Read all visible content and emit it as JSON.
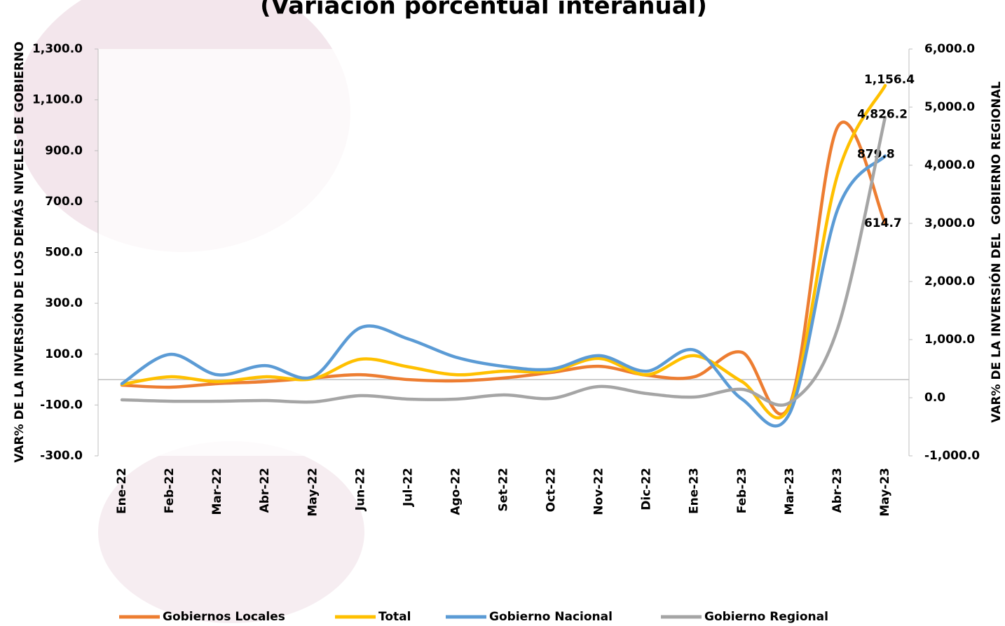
{
  "chart_data": {
    "type": "line",
    "title": "(Variación porcentual interanual)",
    "y_label": "VAR% DE LA INVERSIÓN DE LOS DEMÁS NIVELES DE GOBIERNO",
    "y2_label": "VAR% DE LA INVERSIÓN DEL  GOBIERNO REGIONAL",
    "categories": [
      "Ene-22",
      "Feb-22",
      "Mar-22",
      "Abr-22",
      "May-22",
      "Jun-22",
      "Jul-22",
      "Ago-22",
      "Set-22",
      "Oct-22",
      "Nov-22",
      "Dic-22",
      "Ene-23",
      "Feb-23",
      "Mar-23",
      "Abr-23",
      "May-23"
    ],
    "ylim": [
      -300,
      1300
    ],
    "yticks": [
      {
        "value": -300,
        "label": "-300.0"
      },
      {
        "value": -100,
        "label": "-100.0"
      },
      {
        "value": 100,
        "label": "100.0"
      },
      {
        "value": 300,
        "label": "300.0"
      },
      {
        "value": 500,
        "label": "500.0"
      },
      {
        "value": 700,
        "label": "700.0"
      },
      {
        "value": 900,
        "label": "900.0"
      },
      {
        "value": 1100,
        "label": "1,100.0"
      },
      {
        "value": 1300,
        "label": "1,300.0"
      }
    ],
    "y2lim": [
      -1000,
      6000
    ],
    "y2ticks": [
      {
        "value": -1000,
        "label": "-1,000.0"
      },
      {
        "value": 0,
        "label": "0.0"
      },
      {
        "value": 1000,
        "label": "1,000.0"
      },
      {
        "value": 2000,
        "label": "2,000.0"
      },
      {
        "value": 3000,
        "label": "3,000.0"
      },
      {
        "value": 4000,
        "label": "4,000.0"
      },
      {
        "value": 5000,
        "label": "5,000.0"
      },
      {
        "value": 6000,
        "label": "6,000.0"
      }
    ],
    "legend": "bottom",
    "series": [
      {
        "name": "Gobiernos Locales",
        "color": "#ed7d31",
        "values": [
          -22,
          -30,
          -16,
          -8,
          6,
          19,
          0,
          -5,
          6,
          28,
          52,
          17,
          11,
          107,
          -99,
          992,
          614.7
        ],
        "value_labels": [
          null,
          null,
          null,
          null,
          null,
          null,
          null,
          null,
          null,
          null,
          null,
          null,
          null,
          null,
          null,
          null,
          "614.7"
        ]
      },
      {
        "name": "Total",
        "color": "#ffc000",
        "values": [
          -19,
          11,
          -8,
          11,
          3,
          80,
          50,
          19,
          33,
          33,
          83,
          19,
          94,
          -8,
          -104,
          804,
          1156.4
        ],
        "value_labels": [
          null,
          null,
          null,
          null,
          null,
          null,
          null,
          null,
          null,
          null,
          null,
          null,
          null,
          null,
          null,
          null,
          "1,156.4"
        ]
      },
      {
        "name": "Gobierno Nacional",
        "color": "#5b9bd5",
        "values": [
          -16,
          99,
          19,
          55,
          11,
          204,
          160,
          88,
          52,
          41,
          94,
          33,
          116,
          -77,
          -132,
          667,
          879.8
        ],
        "value_labels": [
          null,
          null,
          null,
          null,
          null,
          null,
          null,
          null,
          null,
          null,
          null,
          null,
          null,
          null,
          null,
          null,
          "879.8"
        ]
      },
      {
        "name": "Gobierno Regional",
        "color": "#a5a5a5",
        "axis": "y2",
        "values": [
          -36,
          -60,
          -60,
          -48,
          -72,
          36,
          -24,
          -24,
          48,
          -12,
          193,
          72,
          12,
          145,
          -84,
          1181,
          4826.2
        ],
        "value_labels": [
          null,
          null,
          null,
          null,
          null,
          null,
          null,
          null,
          null,
          null,
          null,
          null,
          null,
          null,
          null,
          null,
          "4,826.2"
        ]
      }
    ]
  }
}
